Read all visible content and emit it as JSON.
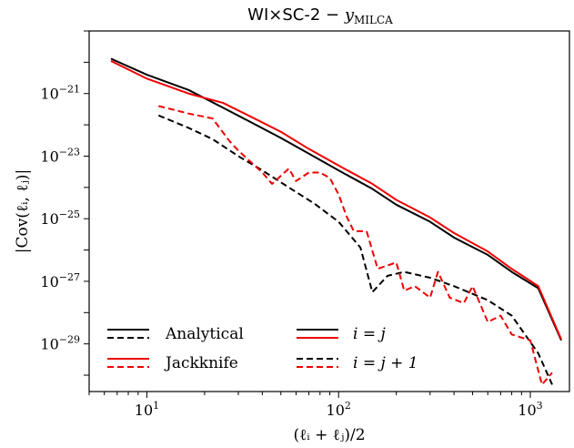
{
  "chart_data": {
    "type": "line",
    "title": "WI×SC-2 − y_MILCA",
    "title_parts": {
      "main": "WI×SC-2 − ",
      "var": "y",
      "sub": "MILCA"
    },
    "xlabel": "(ℓᵢ + ℓⱼ)/2",
    "ylabel": "|Cov(ℓᵢ, ℓⱼ)|",
    "xscale": "log",
    "yscale": "log",
    "xlim": [
      5,
      1600
    ],
    "ylim": [
      3e-31,
      1e-19
    ],
    "xticks": [
      {
        "value": 10,
        "base": "10",
        "exp": "1"
      },
      {
        "value": 100,
        "base": "10",
        "exp": "2"
      },
      {
        "value": 1000,
        "base": "10",
        "exp": "3"
      }
    ],
    "yticks": [
      {
        "value": 1e-21,
        "base": "10",
        "exp": "−21"
      },
      {
        "value": 1e-23,
        "base": "10",
        "exp": "−23"
      },
      {
        "value": 1e-25,
        "base": "10",
        "exp": "−25"
      },
      {
        "value": 1e-27,
        "base": "10",
        "exp": "−27"
      },
      {
        "value": 1e-29,
        "base": "10",
        "exp": "−29"
      }
    ],
    "grid": false,
    "legend_position": "lower-left",
    "legend": {
      "method_labels": [
        "Analytical",
        "Jackknife"
      ],
      "type_labels": [
        "i = j",
        "i = j + 1"
      ]
    },
    "series": [
      {
        "method": "Analytical",
        "kind": "diag",
        "color": "#000000",
        "style": "solid",
        "x": [
          6.5,
          10,
          16.5,
          25,
          35,
          50,
          70,
          100,
          150,
          200,
          300,
          400,
          600,
          800,
          1100,
          1450
        ],
        "y": [
          1.3e-20,
          4e-21,
          1.3e-21,
          3.5e-22,
          1.2e-22,
          3.8e-23,
          1.2e-23,
          3.5e-24,
          9e-25,
          2.8e-25,
          8e-26,
          2.5e-26,
          7e-27,
          2e-27,
          6e-28,
          1.3e-29
        ]
      },
      {
        "method": "Jackknife",
        "kind": "diag",
        "color": "#ee0000",
        "style": "solid",
        "x": [
          6.5,
          10,
          16.5,
          25,
          35,
          50,
          70,
          100,
          150,
          200,
          300,
          400,
          600,
          800,
          1100,
          1450
        ],
        "y": [
          1.1e-20,
          3e-21,
          1e-21,
          5e-22,
          1.8e-22,
          6e-23,
          1.7e-23,
          5e-24,
          1.3e-24,
          4e-25,
          1.1e-25,
          3.5e-26,
          9e-27,
          2.5e-27,
          7e-28,
          1.4e-29
        ]
      },
      {
        "method": "Analytical",
        "kind": "offdiag",
        "color": "#000000",
        "style": "dashed",
        "x": [
          11.5,
          16.5,
          22,
          30,
          40,
          55,
          75,
          100,
          130,
          150,
          180,
          220,
          300,
          400,
          600,
          800,
          1100,
          1300
        ],
        "y": [
          2e-22,
          8e-23,
          3.5e-23,
          1e-23,
          3.5e-24,
          1e-24,
          3e-25,
          8e-26,
          1.2e-26,
          4.5e-28,
          1.5e-27,
          2e-27,
          1.3e-27,
          7e-28,
          2.5e-28,
          8e-29,
          5e-30,
          5e-31
        ]
      },
      {
        "method": "Jackknife",
        "kind": "offdiag",
        "color": "#ee0000",
        "style": "dashed",
        "x": [
          11.5,
          16.5,
          22,
          27,
          30,
          40,
          45,
          55,
          60,
          70,
          80,
          90,
          100,
          110,
          120,
          140,
          160,
          200,
          220,
          250,
          300,
          330,
          380,
          450,
          500,
          600,
          700,
          800,
          1000,
          1150,
          1300
        ],
        "y": [
          4e-22,
          2.3e-22,
          1.6e-22,
          3e-23,
          1.5e-23,
          3e-24,
          1.3e-24,
          4e-24,
          1.6e-24,
          3e-24,
          3e-24,
          2e-24,
          6e-25,
          1.2e-25,
          4e-26,
          4e-26,
          2.5e-27,
          4e-27,
          5e-28,
          7e-28,
          3e-28,
          2e-27,
          3e-28,
          2e-28,
          7e-28,
          5e-29,
          8e-29,
          2e-29,
          1.3e-29,
          5e-31,
          1.2e-30
        ]
      }
    ]
  }
}
